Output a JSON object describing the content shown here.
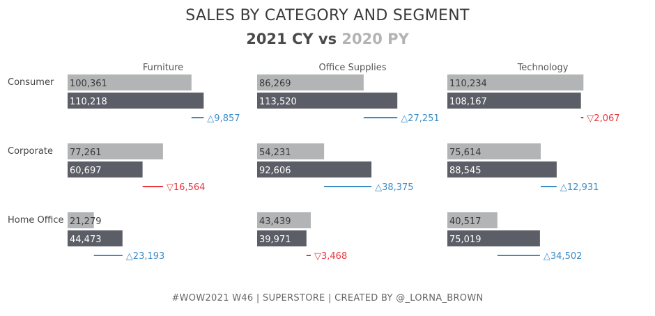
{
  "title": "SALES BY CATEGORY AND SEGMENT",
  "subtitle": {
    "cy": "2021 CY",
    "vs": "vs",
    "py": "2020 PY"
  },
  "footer": "#WOW2021 W46 | SUPERSTORE | CREATED BY @_LORNA_BROWN",
  "colors": {
    "cy": "#5b5e66",
    "py": "#b2b4b5",
    "up": "#3a8cc7",
    "down": "#e8363d"
  },
  "chart_data": {
    "type": "bar",
    "categories": [
      "Furniture",
      "Office Supplies",
      "Technology"
    ],
    "segments": [
      "Consumer",
      "Corporate",
      "Home Office"
    ],
    "series": [
      {
        "name": "2020 PY",
        "values": [
          [
            100361,
            86269,
            110234
          ],
          [
            77261,
            54231,
            75614
          ],
          [
            21279,
            43439,
            40517
          ]
        ]
      },
      {
        "name": "2021 CY",
        "values": [
          [
            110218,
            113520,
            108167
          ],
          [
            60697,
            92606,
            88545
          ],
          [
            44473,
            39971,
            75019
          ]
        ]
      }
    ],
    "labels": {
      "py": [
        [
          "100,361",
          "86,269",
          "110,234"
        ],
        [
          "77,261",
          "54,231",
          "75,614"
        ],
        [
          "21,279",
          "43,439",
          "40,517"
        ]
      ],
      "cy": [
        [
          "110,218",
          "113,520",
          "108,167"
        ],
        [
          "60,697",
          "92,606",
          "88,545"
        ],
        [
          "44,473",
          "39,971",
          "75,019"
        ]
      ]
    },
    "differences": [
      [
        9857,
        27251,
        -2067
      ],
      [
        -16564,
        38375,
        12931
      ],
      [
        23193,
        -3468,
        34502
      ]
    ],
    "difference_labels": [
      [
        "△9,857",
        "△27,251",
        "▽2,067"
      ],
      [
        "▽16,564",
        "△38,375",
        "△12,931"
      ],
      [
        "△23,193",
        "▽3,468",
        "△34,502"
      ]
    ],
    "xlim": [
      0,
      120000
    ]
  }
}
